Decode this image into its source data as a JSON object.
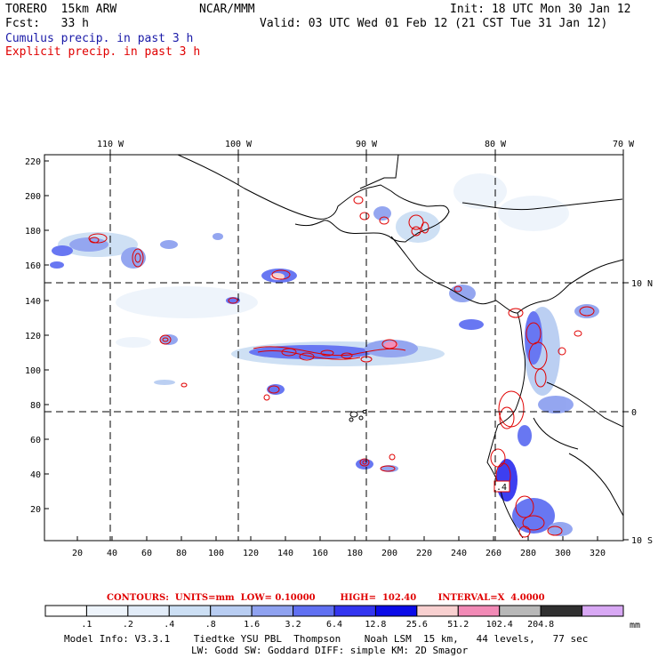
{
  "header": {
    "model": "TORERO  15km ARW",
    "org": "NCAR/MMM",
    "init": "Init: 18 UTC Mon 30 Jan 12",
    "fcst": "Fcst:   33 h",
    "valid": "Valid: 03 UTC Wed 01 Feb 12 (21 CST Tue 31 Jan 12)",
    "cumulus": "Cumulus precip. in past 3 h",
    "explicit": "Explicit precip. in past 3 h"
  },
  "axes": {
    "top_lon_labels": [
      "110 W",
      "100 W",
      "90 W",
      "80 W",
      "70 W"
    ],
    "right_lat_labels": [
      "10 N",
      "0",
      "10 S"
    ],
    "y_ticks": [
      "220",
      "200",
      "180",
      "160",
      "140",
      "120",
      "100",
      "80",
      "60",
      "40",
      "20"
    ],
    "x_ticks": [
      "20",
      "40",
      "60",
      "80",
      "100",
      "120",
      "140",
      "160",
      "180",
      "200",
      "220",
      "240",
      "260",
      "280",
      "300",
      "320"
    ]
  },
  "annotations": {
    "small_box": ".4"
  },
  "contours_line": "CONTOURS:  UNITS=mm  LOW= 0.10000        HIGH=  102.40       INTERVAL=X  4.0000",
  "colorbar": {
    "labels": [
      ".1",
      ".2",
      ".4",
      ".8",
      "1.6",
      "3.2",
      "6.4",
      "12.8",
      "25.6",
      "51.2",
      "102.4",
      "204.8"
    ],
    "unit": "mm",
    "colors": [
      "#ffffff",
      "#eef4fb",
      "#e2ecf8",
      "#ccdff4",
      "#b8cdf2",
      "#8fa2f0",
      "#6070f2",
      "#3335f0",
      "#0b0be8",
      "#f8d0d0",
      "#f28ab6",
      "#b8b8b8",
      "#303030",
      "#d8a8f4"
    ]
  },
  "footer": {
    "line1": "Model Info: V3.3.1    Tiedtke YSU PBL  Thompson    Noah LSM  15 km,   44 levels,   77 sec",
    "line2": "LW: Godd SW: Goddard DIFF: simple KM: 2D Smagor"
  }
}
